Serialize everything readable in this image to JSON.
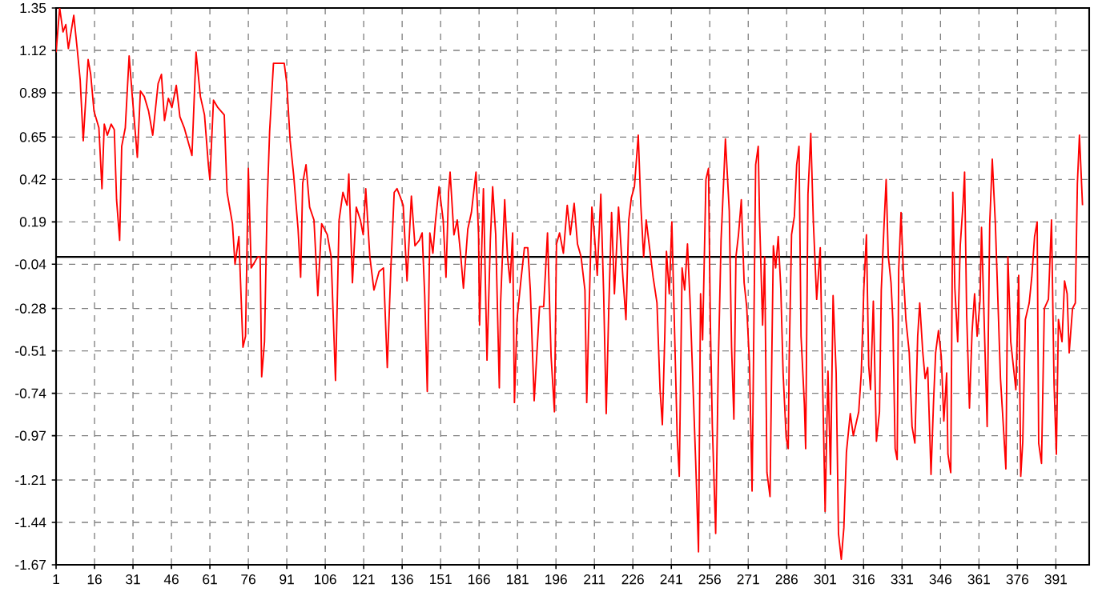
{
  "chart_data": {
    "type": "line",
    "xlim": [
      1,
      404
    ],
    "ylim": [
      -1.67,
      1.35
    ],
    "xticks": [
      1,
      16,
      31,
      46,
      61,
      76,
      91,
      106,
      121,
      136,
      151,
      166,
      181,
      196,
      211,
      226,
      241,
      256,
      271,
      286,
      301,
      316,
      331,
      346,
      361,
      376,
      391
    ],
    "yticks": [
      -1.67,
      -1.44,
      -1.21,
      -0.97,
      -0.74,
      -0.51,
      -0.28,
      -0.04,
      0.19,
      0.42,
      0.65,
      0.89,
      1.12,
      1.35
    ],
    "grid": true,
    "line_style": "solid",
    "ref_lines": [
      {
        "axis": "y",
        "value": 0,
        "color": "#000000"
      }
    ],
    "series": [
      {
        "color": "#ff0000",
        "x": [
          1,
          2.4,
          3.7,
          4.8,
          5.8,
          7.9,
          9.3,
          10.4,
          11.6,
          13.5,
          14.5,
          15.8,
          17.7,
          18.9,
          19.8,
          21,
          22.5,
          23.7,
          24.6,
          25.8,
          26.6,
          28,
          29.5,
          30.8,
          32.7,
          33.9,
          35.4,
          37.1,
          38.7,
          40.8,
          42.1,
          43.3,
          44.8,
          46.2,
          47.9,
          49.3,
          51,
          54,
          55.6,
          57.3,
          58.9,
          60.4,
          61,
          62.4,
          64.1,
          66.6,
          67.7,
          69.8,
          70.8,
          72.3,
          73.9,
          74.9,
          76,
          77.1,
          78,
          79.6,
          80.6,
          81.2,
          82.3,
          83.3,
          84.3,
          85.8,
          90,
          91,
          92.3,
          93.7,
          95.4,
          96.4,
          97.2,
          98.5,
          99.9,
          101.6,
          103.1,
          104.6,
          106.8,
          108.3,
          110,
          111.4,
          112.9,
          114.5,
          115.2,
          116.6,
          118.1,
          119.7,
          120.8,
          121.8,
          123.4,
          125,
          127,
          128.7,
          130.2,
          131.6,
          132.9,
          134,
          135.4,
          136.4,
          137.9,
          139.6,
          141,
          142.7,
          143.8,
          144.8,
          145.8,
          146.8,
          148,
          148.9,
          150.4,
          152,
          153.1,
          154.1,
          154.7,
          156.2,
          157.5,
          158.9,
          159.9,
          161.6,
          163,
          164.8,
          165.8,
          166.2,
          167.7,
          169.1,
          170.4,
          171.3,
          172.5,
          173.9,
          174.4,
          176,
          177.1,
          178.1,
          179.1,
          179.8,
          180.8,
          182.3,
          183.7,
          185,
          186,
          187.5,
          189.6,
          191.2,
          192.7,
          194.1,
          195.4,
          196.2,
          197.4,
          198.9,
          200.4,
          201.6,
          203.1,
          204.4,
          205.8,
          207.3,
          208,
          208.7,
          210,
          211,
          212.1,
          213.5,
          214.6,
          215.6,
          216.6,
          217.7,
          218.8,
          220.4,
          222.1,
          223.3,
          224.4,
          225.4,
          226.6,
          228.1,
          229.1,
          230.2,
          231.2,
          233.9,
          235.4,
          236.6,
          237.5,
          238.5,
          239.1,
          240.2,
          241.2,
          243.3,
          244.1,
          245.2,
          246.2,
          247.3,
          248.3,
          250.5,
          251.6,
          252.4,
          253.2,
          254.5,
          255.5,
          256.2,
          257,
          258.3,
          259.3,
          260.4,
          261.5,
          262.1,
          263.6,
          264.5,
          265.4,
          266.2,
          267.2,
          268.3,
          269.4,
          270.4,
          271.5,
          272.5,
          273.9,
          274.9,
          275.4,
          276.6,
          277.4,
          278.3,
          279.5,
          280.2,
          280.8,
          281.7,
          282.7,
          283.7,
          284.6,
          285.8,
          286.6,
          287,
          287.9,
          289,
          289.9,
          290.8,
          291.6,
          292.9,
          293.4,
          294.3,
          295.4,
          296.4,
          297.7,
          299.1,
          299.9,
          301,
          302.1,
          303.1,
          304.1,
          305.3,
          306.2,
          307.3,
          308.3,
          309.3,
          310.8,
          312,
          314.1,
          315.1,
          316.1,
          317.1,
          318,
          318.7,
          319.8,
          321,
          322.2,
          322.9,
          324,
          324.8,
          325.6,
          326.7,
          327.4,
          328.3,
          329.1,
          329.7,
          330.6,
          331.6,
          332.5,
          333.8,
          334.9,
          336,
          337.1,
          337.9,
          339.1,
          340,
          341,
          342.3,
          343.3,
          344.1,
          345.2,
          346.3,
          347.3,
          348.4,
          348.9,
          350,
          350.8,
          351.6,
          352.7,
          353.7,
          354.8,
          355.4,
          356.2,
          357.3,
          358.3,
          359.3,
          360.3,
          361.4,
          362,
          364.2,
          365.2,
          366.2,
          367.4,
          369.4,
          370.4,
          371.5,
          372.3,
          373.4,
          375.4,
          376.5,
          377.3,
          378.1,
          379.1,
          380.6,
          381.6,
          382.7,
          383.7,
          384.3,
          385.4,
          386.5,
          388.1,
          389.3,
          390.3,
          391.2,
          392,
          393.4,
          394.4,
          395.4,
          396.2,
          397.5,
          398.6,
          399.4,
          400.2,
          401.4
        ],
        "values": [
          1.11,
          1.35,
          1.22,
          1.26,
          1.13,
          1.31,
          1.12,
          0.96,
          0.63,
          1.07,
          0.99,
          0.79,
          0.7,
          0.37,
          0.72,
          0.66,
          0.72,
          0.69,
          0.31,
          0.09,
          0.6,
          0.7,
          1.09,
          0.86,
          0.54,
          0.9,
          0.87,
          0.79,
          0.66,
          0.94,
          0.99,
          0.74,
          0.86,
          0.81,
          0.93,
          0.76,
          0.7,
          0.55,
          1.11,
          0.87,
          0.77,
          0.5,
          0.42,
          0.85,
          0.81,
          0.77,
          0.35,
          0.18,
          -0.04,
          0.11,
          -0.49,
          -0.43,
          0.48,
          -0.06,
          -0.04,
          0.0,
          0.0,
          -0.65,
          -0.46,
          0.27,
          0.68,
          1.05,
          1.05,
          0.94,
          0.63,
          0.44,
          0.15,
          -0.11,
          0.4,
          0.5,
          0.27,
          0.2,
          -0.21,
          0.18,
          0.12,
          0.0,
          -0.67,
          0.2,
          0.35,
          0.28,
          0.45,
          -0.14,
          0.27,
          0.2,
          0.12,
          0.37,
          0.0,
          -0.18,
          -0.08,
          -0.06,
          -0.6,
          -0.06,
          0.35,
          0.37,
          0.32,
          0.28,
          -0.13,
          0.33,
          0.06,
          0.09,
          0.13,
          -0.21,
          -0.73,
          0.13,
          0.02,
          0.18,
          0.38,
          0.2,
          -0.11,
          0.35,
          0.46,
          0.12,
          0.2,
          0.0,
          -0.17,
          0.15,
          0.24,
          0.46,
          0.12,
          -0.37,
          0.37,
          -0.56,
          0.09,
          0.38,
          0.12,
          -0.71,
          -0.25,
          0.31,
          0.0,
          -0.14,
          0.13,
          -0.79,
          -0.34,
          -0.13,
          0.05,
          0.05,
          -0.18,
          -0.78,
          -0.27,
          -0.27,
          0.13,
          -0.54,
          -0.84,
          0.07,
          0.13,
          0.02,
          0.28,
          0.12,
          0.29,
          0.07,
          0.0,
          -0.18,
          -0.79,
          -0.4,
          0.27,
          0.12,
          -0.1,
          0.34,
          -0.2,
          -0.85,
          -0.28,
          0.24,
          -0.2,
          0.27,
          -0.11,
          -0.34,
          0.2,
          0.32,
          0.38,
          0.66,
          0.28,
          0.0,
          0.2,
          -0.11,
          -0.25,
          -0.72,
          -0.91,
          -0.4,
          0.03,
          -0.2,
          0.19,
          -0.98,
          -1.19,
          -0.06,
          -0.18,
          0.07,
          -0.24,
          -1.11,
          -1.6,
          -0.2,
          -0.45,
          0.42,
          0.48,
          -0.34,
          -0.92,
          -1.5,
          -0.6,
          0.09,
          0.44,
          0.64,
          0.25,
          -0.49,
          -0.88,
          0.0,
          0.12,
          0.31,
          -0.14,
          -0.27,
          -0.58,
          -1.27,
          0.5,
          0.6,
          0.22,
          -0.37,
          0.0,
          -1.17,
          -1.3,
          -0.54,
          0.06,
          -0.06,
          0.11,
          -0.17,
          -0.63,
          -0.98,
          -1.04,
          -0.53,
          0.12,
          0.22,
          0.5,
          0.6,
          -0.43,
          -0.8,
          -1.04,
          0.34,
          0.67,
          0.19,
          -0.23,
          0.05,
          -0.6,
          -1.38,
          -0.62,
          -1.18,
          -0.21,
          -0.63,
          -1.5,
          -1.64,
          -1.47,
          -1.06,
          -0.85,
          -0.97,
          -0.84,
          -0.63,
          -0.17,
          0.12,
          -0.59,
          -0.72,
          -0.24,
          -1.0,
          -0.84,
          -0.18,
          0.18,
          0.42,
          0.01,
          -0.14,
          -0.34,
          -1.04,
          -1.1,
          -0.07,
          0.24,
          -0.11,
          -0.34,
          -0.52,
          -0.92,
          -1.01,
          -0.43,
          -0.25,
          -0.52,
          -0.66,
          -0.6,
          -1.18,
          -0.78,
          -0.52,
          -0.4,
          -0.54,
          -0.89,
          -0.63,
          -1.07,
          -1.17,
          0.35,
          -0.17,
          -0.46,
          0.06,
          0.29,
          0.46,
          -0.31,
          -0.82,
          -0.41,
          -0.2,
          -0.43,
          -0.24,
          0.16,
          -0.92,
          0.18,
          0.53,
          0.18,
          -0.66,
          -0.89,
          -1.15,
          0.0,
          -0.46,
          -0.72,
          -0.1,
          -1.19,
          -1.0,
          -0.34,
          -0.25,
          -0.11,
          0.11,
          0.19,
          -1.01,
          -1.12,
          -0.28,
          -0.23,
          0.2,
          -0.69,
          -1.07,
          -0.34,
          -0.46,
          -0.13,
          -0.2,
          -0.52,
          -0.28,
          -0.25,
          0.4,
          0.66,
          0.28
        ]
      }
    ]
  }
}
